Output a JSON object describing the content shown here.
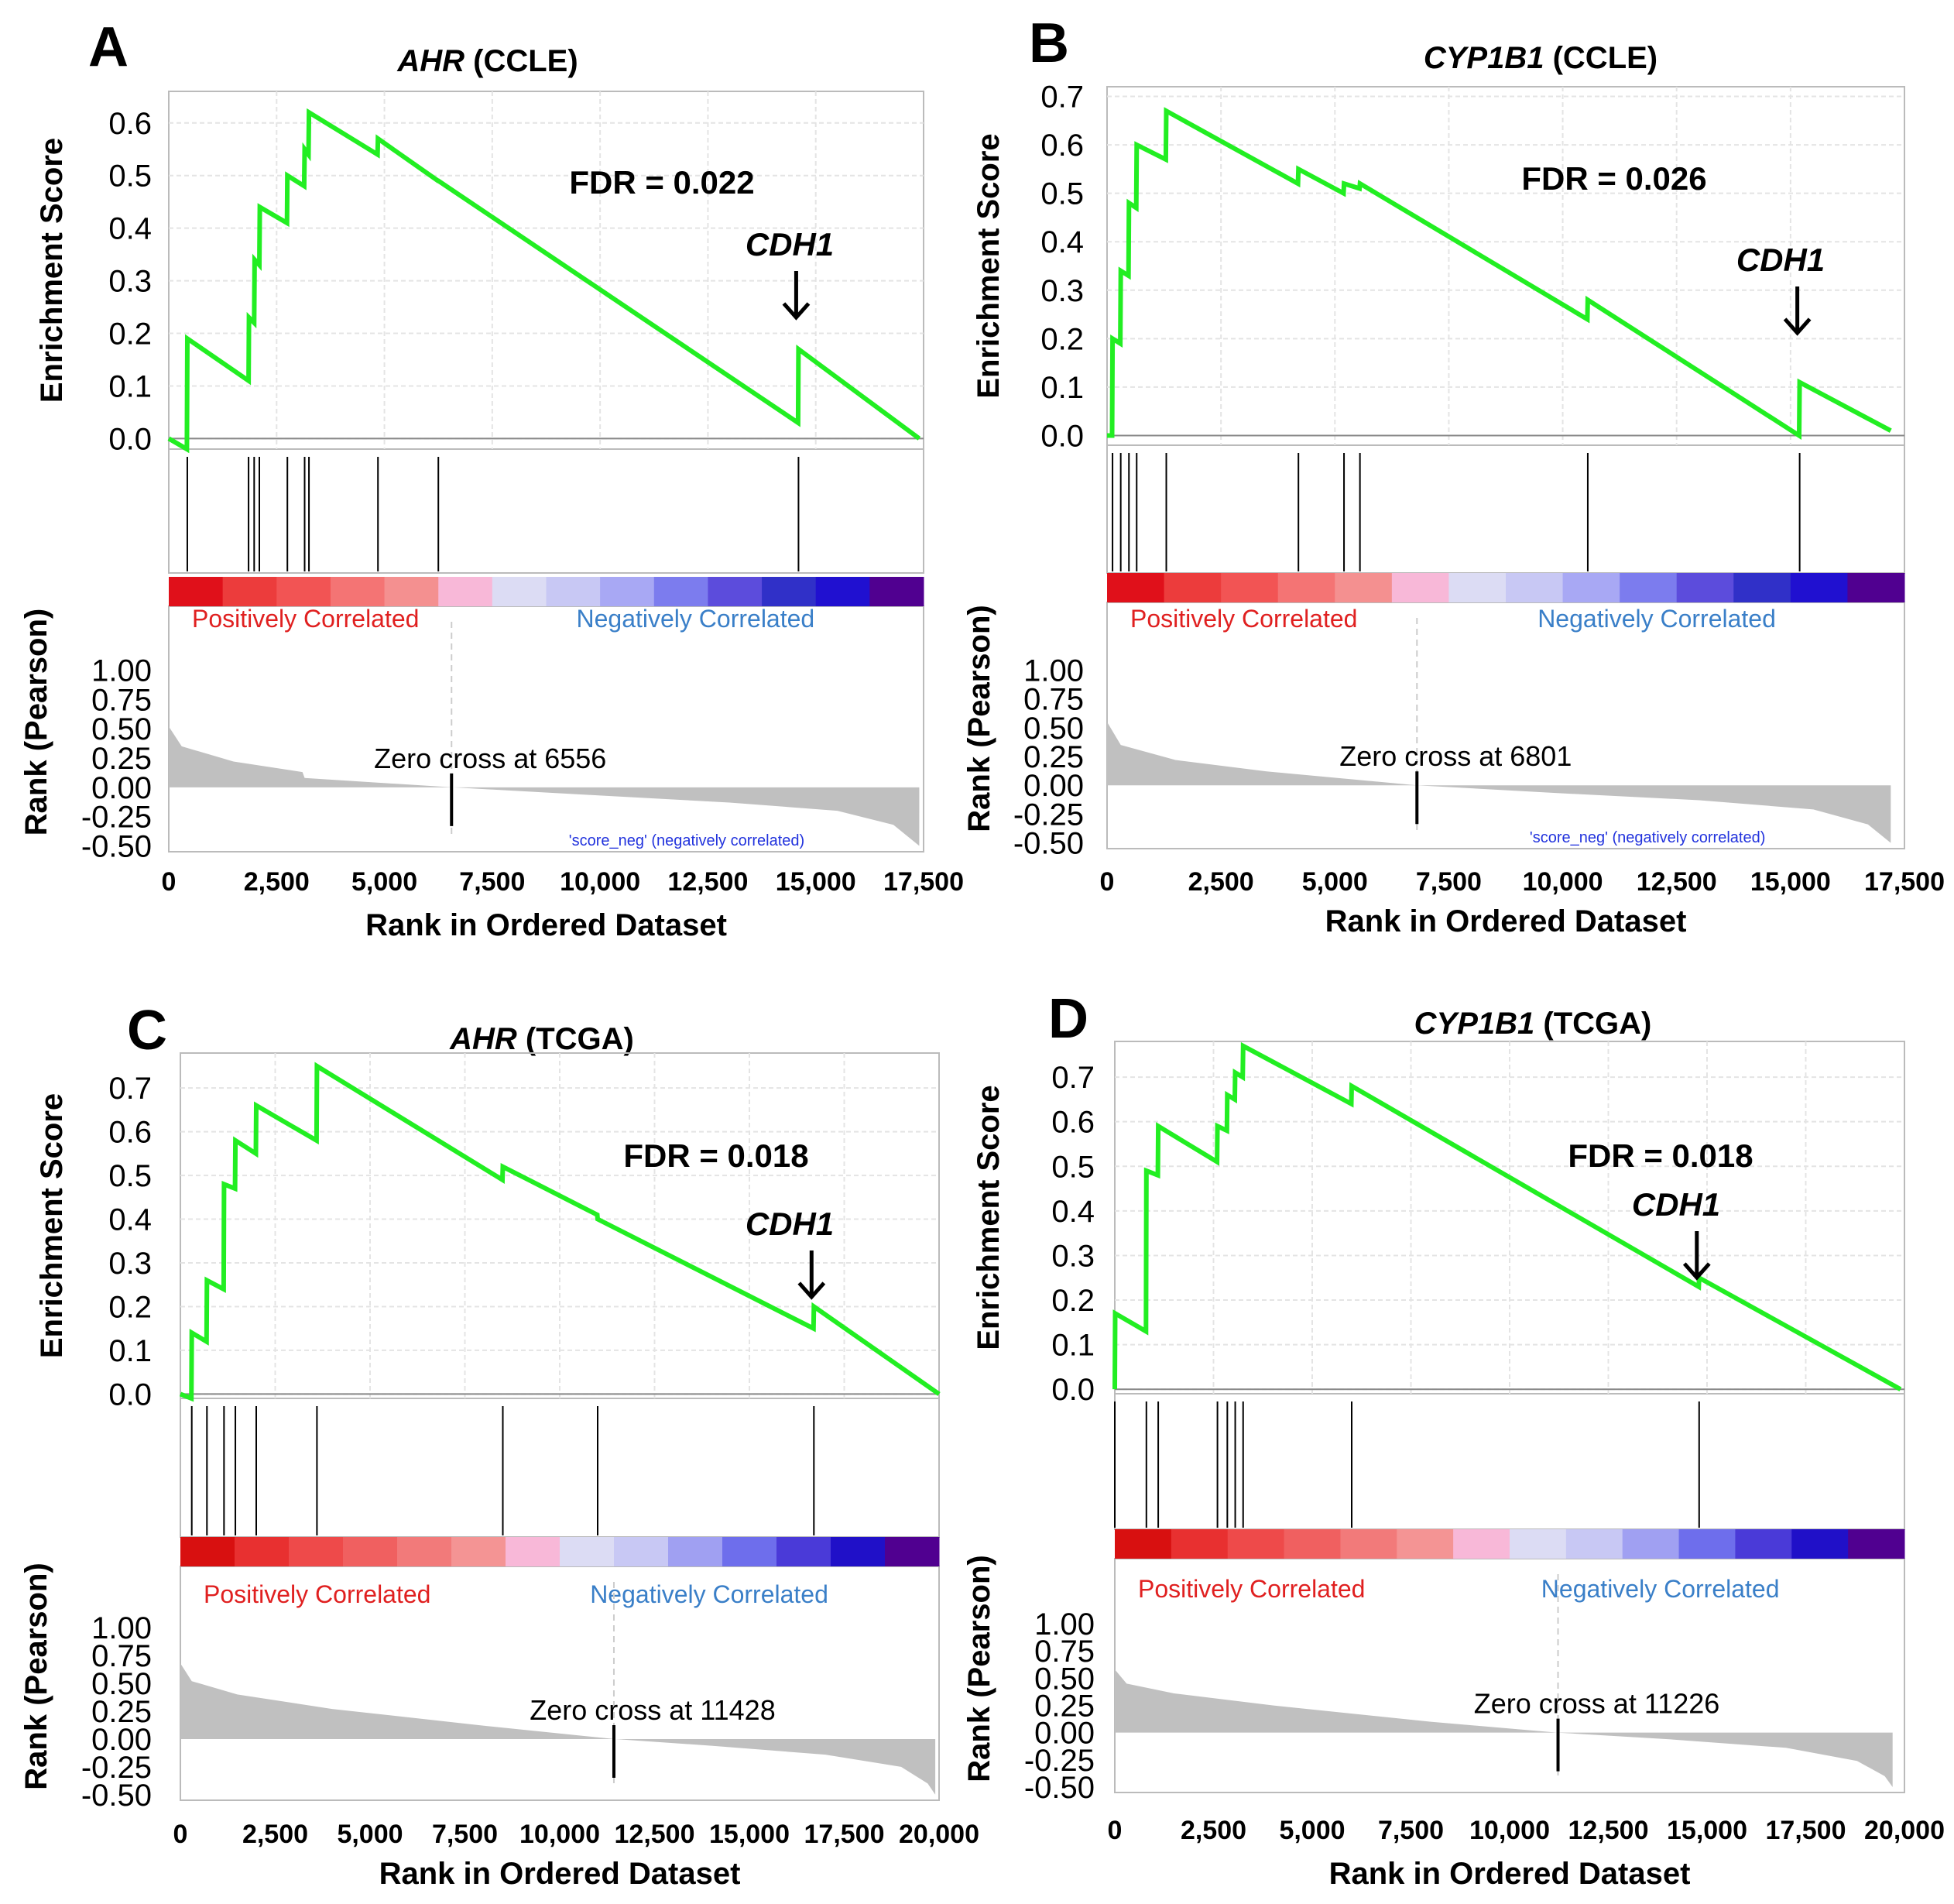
{
  "colors": {
    "es_line": "#22ee22",
    "rank_fill": "#c0c0c0",
    "pos_text": "#e02020",
    "neg_text": "#3a7fc8",
    "frame": "#bbbbbb",
    "grid": "#e4e4e4"
  },
  "chart_data": [
    {
      "type": "line",
      "panel": "A",
      "title_italic": "AHR",
      "title_rest": " (CCLE)",
      "ylabel": "Enrichment Score",
      "rank_ylabel": "Rank (Pearson)",
      "xlabel": "Rank in Ordered Dataset",
      "x_ticks": [
        "0",
        "2,500",
        "5,000",
        "7,500",
        "10,000",
        "12,500",
        "15,000",
        "17,500"
      ],
      "x_tick_values": [
        0,
        2500,
        5000,
        7500,
        10000,
        12500,
        15000,
        17500
      ],
      "xmax": 17500,
      "es_ticks": [
        "0.0",
        "0.1",
        "0.2",
        "0.3",
        "0.4",
        "0.5",
        "0.6"
      ],
      "es_tick_values": [
        0,
        0.1,
        0.2,
        0.3,
        0.4,
        0.5,
        0.6
      ],
      "es_range": [
        -0.02,
        0.66
      ],
      "rank_ticks": [
        "1.00",
        "0.75",
        "0.50",
        "0.25",
        "0.00",
        "-0.25",
        "-0.50"
      ],
      "rank_tick_values": [
        1.0,
        0.75,
        0.5,
        0.25,
        0.0,
        -0.25,
        -0.5
      ],
      "fdr": "FDR = 0.022",
      "cdh1_label": "CDH1",
      "cdh1_rank": 14600,
      "pos_label": "Positively Correlated",
      "neg_label": "Negatively Correlated",
      "zero_cross": "Zero cross at 6556",
      "zero_cross_rank": 6556,
      "score_neg": "'score_neg' (negatively correlated)",
      "hits": [
        430,
        1850,
        1980,
        2100,
        2750,
        3150,
        3250,
        4850,
        6250,
        14600
      ],
      "es": [
        [
          0,
          0
        ],
        [
          420,
          -0.02
        ],
        [
          430,
          0.19
        ],
        [
          1850,
          0.11
        ],
        [
          1860,
          0.23
        ],
        [
          1980,
          0.22
        ],
        [
          1990,
          0.34
        ],
        [
          2100,
          0.33
        ],
        [
          2110,
          0.44
        ],
        [
          2740,
          0.41
        ],
        [
          2750,
          0.5
        ],
        [
          3140,
          0.48
        ],
        [
          3150,
          0.55
        ],
        [
          3240,
          0.54
        ],
        [
          3250,
          0.62
        ],
        [
          4840,
          0.54
        ],
        [
          4850,
          0.57
        ],
        [
          6240,
          0.49
        ],
        [
          6250,
          0.49
        ],
        [
          14590,
          0.03
        ],
        [
          14600,
          0.17
        ],
        [
          17400,
          0
        ]
      ],
      "rank_curve": [
        [
          0,
          0.52
        ],
        [
          300,
          0.35
        ],
        [
          1500,
          0.22
        ],
        [
          3100,
          0.13
        ],
        [
          3150,
          0.08
        ],
        [
          6556,
          0
        ],
        [
          10000,
          -0.07
        ],
        [
          13000,
          -0.13
        ],
        [
          15500,
          -0.2
        ],
        [
          16800,
          -0.32
        ],
        [
          17400,
          -0.5
        ]
      ],
      "heat": [
        "#e0101a",
        "#ec3c3c",
        "#f25454",
        "#f47474",
        "#f49090",
        "#f8b8d8",
        "#dcdcf4",
        "#c8c8f4",
        "#a8a8f4",
        "#7c7cee",
        "#5c4cdc",
        "#3030c8",
        "#2010d0",
        "#500090"
      ]
    },
    {
      "type": "line",
      "panel": "B",
      "title_italic": "CYP1B1",
      "title_rest": " (CCLE)",
      "ylabel": "Enrichment Score",
      "rank_ylabel": "Rank (Pearson)",
      "xlabel": "Rank in Ordered Dataset",
      "x_ticks": [
        "0",
        "2,500",
        "5,000",
        "7,500",
        "10,000",
        "12,500",
        "15,000",
        "17,500"
      ],
      "x_tick_values": [
        0,
        2500,
        5000,
        7500,
        10000,
        12500,
        15000,
        17500
      ],
      "xmax": 17500,
      "es_ticks": [
        "0.0",
        "0.1",
        "0.2",
        "0.3",
        "0.4",
        "0.5",
        "0.6",
        "0.7"
      ],
      "es_tick_values": [
        0,
        0.1,
        0.2,
        0.3,
        0.4,
        0.5,
        0.6,
        0.7
      ],
      "es_range": [
        -0.02,
        0.72
      ],
      "rank_ticks": [
        "1.00",
        "0.75",
        "0.50",
        "0.25",
        "0.00",
        "-0.25",
        "-0.50"
      ],
      "rank_tick_values": [
        1.0,
        0.75,
        0.5,
        0.25,
        0.0,
        -0.25,
        -0.5
      ],
      "fdr": "FDR = 0.026",
      "cdh1_label": "CDH1",
      "cdh1_rank": 15200,
      "pos_label": "Positively Correlated",
      "neg_label": "Negatively Correlated",
      "zero_cross": "Zero cross at  6801",
      "zero_cross_rank": 6801,
      "score_neg": "'score_neg' (negatively correlated)",
      "hits": [
        120,
        300,
        480,
        650,
        1300,
        4200,
        5200,
        5550,
        10550,
        15200
      ],
      "es": [
        [
          0,
          0
        ],
        [
          110,
          0
        ],
        [
          120,
          0.2
        ],
        [
          290,
          0.19
        ],
        [
          300,
          0.34
        ],
        [
          470,
          0.33
        ],
        [
          480,
          0.48
        ],
        [
          640,
          0.47
        ],
        [
          650,
          0.6
        ],
        [
          1290,
          0.57
        ],
        [
          1300,
          0.67
        ],
        [
          4190,
          0.52
        ],
        [
          4200,
          0.55
        ],
        [
          5190,
          0.5
        ],
        [
          5200,
          0.52
        ],
        [
          5540,
          0.51
        ],
        [
          5550,
          0.52
        ],
        [
          10540,
          0.24
        ],
        [
          10550,
          0.28
        ],
        [
          15190,
          0
        ],
        [
          15200,
          0.11
        ],
        [
          17200,
          0.01
        ]
      ],
      "rank_curve": [
        [
          0,
          0.55
        ],
        [
          300,
          0.35
        ],
        [
          1500,
          0.22
        ],
        [
          3500,
          0.12
        ],
        [
          6801,
          0
        ],
        [
          10000,
          -0.07
        ],
        [
          13000,
          -0.13
        ],
        [
          15500,
          -0.21
        ],
        [
          16700,
          -0.34
        ],
        [
          17200,
          -0.5
        ]
      ],
      "heat": [
        "#e0101a",
        "#ec3c3c",
        "#f25454",
        "#f47474",
        "#f49090",
        "#f8b8d8",
        "#dcdcf4",
        "#c8c8f4",
        "#a8a8f4",
        "#7c7cee",
        "#5c4cdc",
        "#3030c8",
        "#2010d0",
        "#500090"
      ]
    },
    {
      "type": "line",
      "panel": "C",
      "title_italic": "AHR",
      "title_rest": " (TCGA)",
      "ylabel": "Enrichment Score",
      "rank_ylabel": "Rank (Pearson)",
      "xlabel": "Rank in Ordered Dataset",
      "x_ticks": [
        "0",
        "2,500",
        "5,000",
        "7,500",
        "10,000",
        "12,500",
        "15,000",
        "17,500",
        "20,000"
      ],
      "x_tick_values": [
        0,
        2500,
        5000,
        7500,
        10000,
        12500,
        15000,
        17500,
        20000
      ],
      "xmax": 20000,
      "es_ticks": [
        "0.0",
        "0.1",
        "0.2",
        "0.3",
        "0.4",
        "0.5",
        "0.6",
        "0.7"
      ],
      "es_tick_values": [
        0,
        0.1,
        0.2,
        0.3,
        0.4,
        0.5,
        0.6,
        0.7
      ],
      "es_range": [
        -0.01,
        0.78
      ],
      "rank_ticks": [
        "1.00",
        "0.75",
        "0.50",
        "0.25",
        "0.00",
        "-0.25",
        "-0.50"
      ],
      "rank_tick_values": [
        1.0,
        0.75,
        0.5,
        0.25,
        0.0,
        -0.25,
        -0.5
      ],
      "fdr": "FDR = 0.018",
      "cdh1_label": "CDH1",
      "cdh1_rank": 16700,
      "pos_label": "Positively Correlated",
      "neg_label": "Negatively Correlated",
      "zero_cross": "Zero cross at 11428",
      "zero_cross_rank": 11428,
      "score_neg": "",
      "hits": [
        300,
        700,
        1150,
        1450,
        2000,
        3600,
        8500,
        11000,
        16700
      ],
      "es": [
        [
          0,
          0
        ],
        [
          290,
          -0.01
        ],
        [
          300,
          0.14
        ],
        [
          690,
          0.12
        ],
        [
          700,
          0.26
        ],
        [
          1140,
          0.24
        ],
        [
          1150,
          0.48
        ],
        [
          1440,
          0.47
        ],
        [
          1450,
          0.58
        ],
        [
          1990,
          0.55
        ],
        [
          2000,
          0.66
        ],
        [
          3590,
          0.58
        ],
        [
          3600,
          0.75
        ],
        [
          8490,
          0.49
        ],
        [
          8500,
          0.52
        ],
        [
          10990,
          0.41
        ],
        [
          11000,
          0.4
        ],
        [
          16690,
          0.15
        ],
        [
          16700,
          0.2
        ],
        [
          20000,
          0
        ]
      ],
      "rank_curve": [
        [
          0,
          0.68
        ],
        [
          300,
          0.52
        ],
        [
          1500,
          0.4
        ],
        [
          4000,
          0.27
        ],
        [
          8000,
          0.12
        ],
        [
          11428,
          0
        ],
        [
          14000,
          -0.06
        ],
        [
          17000,
          -0.14
        ],
        [
          19000,
          -0.25
        ],
        [
          19700,
          -0.4
        ],
        [
          19900,
          -0.5
        ]
      ],
      "heat": [
        "#d81010",
        "#e83030",
        "#ee4a4a",
        "#f06060",
        "#f27a7a",
        "#f49494",
        "#f8b8d8",
        "#dcdcf4",
        "#c8c8f4",
        "#a0a0f2",
        "#6e6eec",
        "#4a3ad8",
        "#2010c8",
        "#500090"
      ]
    },
    {
      "type": "line",
      "panel": "D",
      "title_italic": "CYP1B1",
      "title_rest": " (TCGA)",
      "ylabel": "Enrichment Score",
      "rank_ylabel": "Rank (Pearson)",
      "xlabel": "Rank in Ordered Dataset",
      "x_ticks": [
        "0",
        "2,500",
        "5,000",
        "7,500",
        "10,000",
        "12,500",
        "15,000",
        "17,500",
        "20,000"
      ],
      "x_tick_values": [
        0,
        2500,
        5000,
        7500,
        10000,
        12500,
        15000,
        17500,
        20000
      ],
      "xmax": 20000,
      "es_ticks": [
        "0.0",
        "0.1",
        "0.2",
        "0.3",
        "0.4",
        "0.5",
        "0.6",
        "0.7"
      ],
      "es_tick_values": [
        0,
        0.1,
        0.2,
        0.3,
        0.4,
        0.5,
        0.6,
        0.7
      ],
      "es_range": [
        -0.01,
        0.78
      ],
      "rank_ticks": [
        "1.00",
        "0.75",
        "0.50",
        "0.25",
        "0.00",
        "-0.25",
        "-0.50"
      ],
      "rank_tick_values": [
        1.0,
        0.75,
        0.5,
        0.25,
        0.0,
        -0.25,
        -0.5
      ],
      "fdr": "FDR = 0.018",
      "cdh1_label": "CDH1",
      "cdh1_rank": 14800,
      "pos_label": "Positively Correlated",
      "neg_label": "Negatively Correlated",
      "zero_cross": "Zero cross at 11226",
      "zero_cross_rank": 11226,
      "score_neg": "",
      "hits": [
        0,
        800,
        1100,
        2600,
        2850,
        3050,
        3250,
        6000,
        14800
      ],
      "es": [
        [
          0,
          0
        ],
        [
          10,
          0.17
        ],
        [
          790,
          0.13
        ],
        [
          800,
          0.49
        ],
        [
          1090,
          0.48
        ],
        [
          1100,
          0.59
        ],
        [
          2590,
          0.51
        ],
        [
          2600,
          0.59
        ],
        [
          2840,
          0.58
        ],
        [
          2850,
          0.66
        ],
        [
          3040,
          0.65
        ],
        [
          3050,
          0.71
        ],
        [
          3240,
          0.7
        ],
        [
          3250,
          0.77
        ],
        [
          5990,
          0.64
        ],
        [
          6000,
          0.68
        ],
        [
          14790,
          0.23
        ],
        [
          14800,
          0.25
        ],
        [
          19900,
          0
        ]
      ],
      "rank_curve": [
        [
          0,
          0.58
        ],
        [
          300,
          0.45
        ],
        [
          1500,
          0.36
        ],
        [
          4000,
          0.25
        ],
        [
          8000,
          0.1
        ],
        [
          11226,
          0
        ],
        [
          14000,
          -0.06
        ],
        [
          17000,
          -0.14
        ],
        [
          18800,
          -0.26
        ],
        [
          19500,
          -0.4
        ],
        [
          19700,
          -0.5
        ]
      ],
      "heat": [
        "#d81010",
        "#e83030",
        "#ee4a4a",
        "#f06060",
        "#f27a7a",
        "#f49494",
        "#f8b8d8",
        "#dcdcf4",
        "#c8c8f4",
        "#a0a0f2",
        "#6e6eec",
        "#4a3ad8",
        "#2010c8",
        "#500090"
      ]
    }
  ]
}
